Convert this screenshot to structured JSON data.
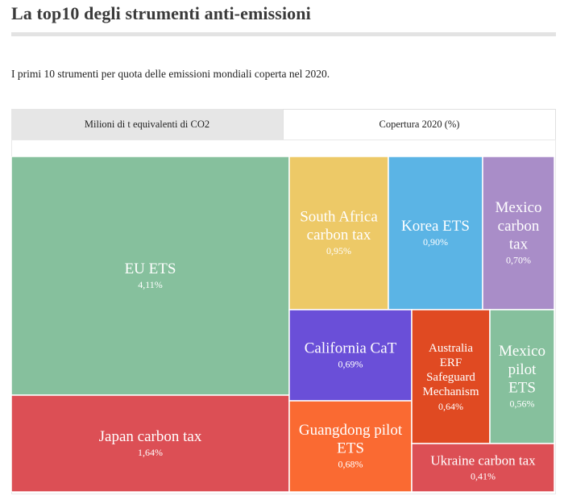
{
  "header": {
    "title": "La top10 degli strumenti anti-emissioni",
    "subtitle": "I primi 10 strumenti per quota delle emissioni mondiali coperta nel 2020."
  },
  "tabs": [
    {
      "label": "Milioni di t equivalenti di CO2",
      "active": false
    },
    {
      "label": "Copertura 2020 (%)",
      "active": true
    }
  ],
  "chart_data": {
    "type": "treemap",
    "unit": "%",
    "series": [
      {
        "name": "EU ETS",
        "value": 4.11,
        "label": "4,11%",
        "color": "#86c09d"
      },
      {
        "name": "Japan carbon tax",
        "value": 1.64,
        "label": "1,64%",
        "color": "#dc4f55"
      },
      {
        "name": "South Africa carbon tax",
        "value": 0.95,
        "label": "0,95%",
        "color": "#edc967"
      },
      {
        "name": "Korea ETS",
        "value": 0.9,
        "label": "0,90%",
        "color": "#5bb4e5"
      },
      {
        "name": "Mexico carbon tax",
        "value": 0.7,
        "label": "0,70%",
        "color": "#a98dc8"
      },
      {
        "name": "California CaT",
        "value": 0.69,
        "label": "0,69%",
        "color": "#6a4fd8"
      },
      {
        "name": "Guangdong pilot ETS",
        "value": 0.68,
        "label": "0,68%",
        "color": "#fa6a32"
      },
      {
        "name": "Australia ERF Safeguard Mechanism",
        "value": 0.64,
        "label": "0,64%",
        "color": "#e04a22"
      },
      {
        "name": "Mexico pilot ETS",
        "value": 0.56,
        "label": "0,56%",
        "color": "#86c09d"
      },
      {
        "name": "Ukraine carbon tax",
        "value": 0.41,
        "label": "0,41%",
        "color": "#dc4f55"
      }
    ]
  }
}
